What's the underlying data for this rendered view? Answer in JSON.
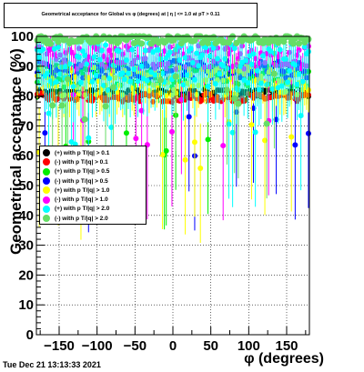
{
  "title": "Geometrical acceptance for Global vs φ (degrees) at | η | <= 1.0 at pT > 0.11",
  "datestamp": "Tue Dec 21 13:13:33 2021",
  "chart_data": {
    "type": "scatter",
    "xlabel": "φ (degrees)",
    "ylabel": "Geometrical acceptance (%)",
    "xlim": [
      -180,
      180
    ],
    "ylim": [
      0,
      100
    ],
    "xticks": [
      -150,
      -100,
      -50,
      0,
      50,
      100,
      150
    ],
    "xtick_labels": [
      "−150",
      "−100",
      "−50",
      "0",
      "50",
      "100",
      "150"
    ],
    "yticks": [
      0,
      10,
      20,
      30,
      40,
      50,
      60,
      70,
      80,
      90,
      100
    ],
    "ytick_labels": [
      "0",
      "10",
      "20",
      "30",
      "40",
      "50",
      "60",
      "70",
      "80",
      "90",
      "100"
    ],
    "grid": true,
    "legend_position": "left-middle",
    "series": [
      {
        "name": "(+) with p T/|q| > 0.1",
        "color": "#000000",
        "typical": 81,
        "spread": 1.2
      },
      {
        "name": "(-) with p T/|q| > 0.1",
        "color": "#ff0000",
        "typical": 79.5,
        "spread": 1.5
      },
      {
        "name": "(+) with p T/|q| > 0.5",
        "color": "#00ee00",
        "typical": 87,
        "spread": 4
      },
      {
        "name": "(-) with p T/|q| > 0.5",
        "color": "#0000ff",
        "typical": 89,
        "spread": 3
      },
      {
        "name": "(+) with p T/|q| > 1.0",
        "color": "#ffff00",
        "typical": 85,
        "spread": 5
      },
      {
        "name": "(-) with p T/|q| > 1.0",
        "color": "#ff00ff",
        "typical": 93,
        "spread": 4
      },
      {
        "name": "(+) with p T/|q| > 2.0",
        "color": "#00ffff",
        "typical": 90,
        "spread": 8
      },
      {
        "name": "(-) with p T/|q| > 2.0",
        "color": "#66dd66",
        "typical": 99,
        "spread": 1.5
      }
    ]
  }
}
